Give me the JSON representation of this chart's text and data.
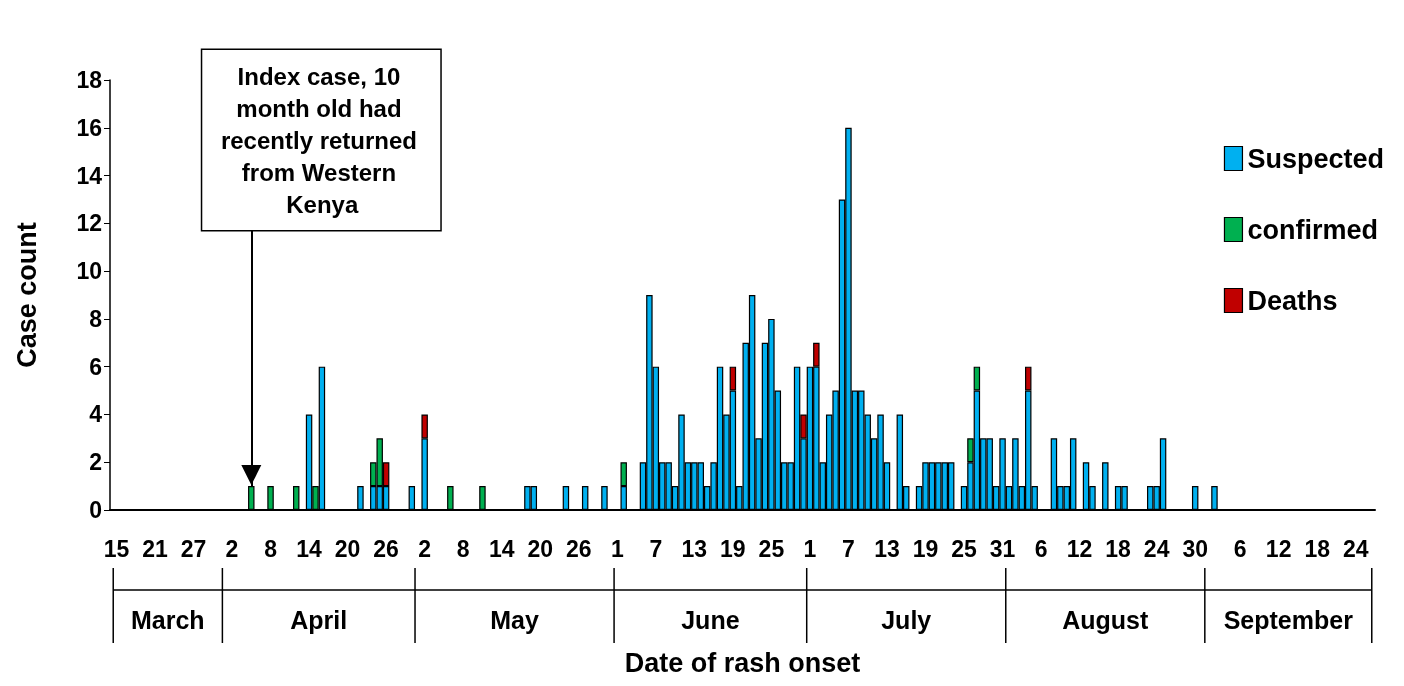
{
  "chart_data": {
    "type": "bar",
    "stacked": true,
    "xlabel": "Date of rash onset",
    "ylabel": "Case count",
    "x": [
      "--04-05",
      "--04-08",
      "--04-12",
      "--04-14",
      "--04-15",
      "--04-16",
      "--04-22",
      "--04-24",
      "--04-25",
      "--04-26",
      "--04-30",
      "--05-02",
      "--05-06",
      "--05-11",
      "--05-18",
      "--05-19",
      "--05-24",
      "--05-27",
      "--05-30",
      "--06-02",
      "--06-05",
      "--06-06",
      "--06-07",
      "--06-08",
      "--06-09",
      "--06-10",
      "--06-11",
      "--06-12",
      "--06-13",
      "--06-14",
      "--06-15",
      "--06-16",
      "--06-17",
      "--06-18",
      "--06-19",
      "--06-20",
      "--06-21",
      "--06-22",
      "--06-23",
      "--06-24",
      "--06-25",
      "--06-26",
      "--06-27",
      "--06-28",
      "--06-29",
      "--06-30",
      "--07-01",
      "--07-02",
      "--07-03",
      "--07-04",
      "--07-05",
      "--07-06",
      "--07-07",
      "--07-08",
      "--07-09",
      "--07-10",
      "--07-11",
      "--07-12",
      "--07-13",
      "--07-15",
      "--07-16",
      "--07-18",
      "--07-19",
      "--07-20",
      "--07-21",
      "--07-22",
      "--07-23",
      "--07-25",
      "--07-26",
      "--07-27",
      "--07-28",
      "--07-29",
      "--07-30",
      "--07-31",
      "--08-01",
      "--08-02",
      "--08-03",
      "--08-04",
      "--08-05",
      "--08-08",
      "--08-09",
      "--08-10",
      "--08-11",
      "--08-13",
      "--08-14",
      "--08-16",
      "--08-18",
      "--08-19",
      "--08-23",
      "--08-24",
      "--08-25",
      "--08-30",
      "--09-02"
    ],
    "series": [
      {
        "name": "Suspected",
        "color": "#00b0f0",
        "values": [
          0,
          0,
          0,
          4,
          0,
          6,
          1,
          1,
          1,
          1,
          1,
          3,
          0,
          0,
          1,
          1,
          1,
          1,
          1,
          1,
          2,
          9,
          6,
          2,
          2,
          1,
          4,
          2,
          2,
          2,
          1,
          2,
          6,
          4,
          5,
          1,
          7,
          9,
          3,
          7,
          8,
          5,
          2,
          2,
          6,
          3,
          6,
          6,
          2,
          4,
          5,
          13,
          16,
          5,
          5,
          4,
          3,
          4,
          2,
          4,
          1,
          1,
          2,
          2,
          2,
          2,
          2,
          1,
          2,
          5,
          3,
          3,
          1,
          3,
          1,
          3,
          1,
          5,
          1,
          3,
          1,
          1,
          3,
          2,
          1,
          2,
          1,
          1,
          1,
          1,
          3,
          1,
          1
        ]
      },
      {
        "name": "confirmed",
        "color": "#00b050",
        "values": [
          1,
          1,
          1,
          0,
          1,
          0,
          0,
          1,
          2,
          0,
          0,
          0,
          1,
          1,
          0,
          0,
          0,
          0,
          0,
          1,
          0,
          0,
          0,
          0,
          0,
          0,
          0,
          0,
          0,
          0,
          0,
          0,
          0,
          0,
          0,
          0,
          0,
          0,
          0,
          0,
          0,
          0,
          0,
          0,
          0,
          0,
          0,
          0,
          0,
          0,
          0,
          0,
          0,
          0,
          0,
          0,
          0,
          0,
          0,
          0,
          0,
          0,
          0,
          0,
          0,
          0,
          0,
          0,
          1,
          1,
          0,
          0,
          0,
          0,
          0,
          0,
          0,
          0,
          0,
          0,
          0,
          0,
          0,
          0,
          0,
          0,
          0,
          0,
          0,
          0,
          0,
          0,
          0
        ]
      },
      {
        "name": "Deaths",
        "color": "#c00000",
        "values": [
          0,
          0,
          0,
          0,
          0,
          0,
          0,
          0,
          0,
          1,
          0,
          1,
          0,
          0,
          0,
          0,
          0,
          0,
          0,
          0,
          0,
          0,
          0,
          0,
          0,
          0,
          0,
          0,
          0,
          0,
          0,
          0,
          0,
          0,
          1,
          0,
          0,
          0,
          0,
          0,
          0,
          0,
          0,
          0,
          0,
          1,
          0,
          1,
          0,
          0,
          0,
          0,
          0,
          0,
          0,
          0,
          0,
          0,
          0,
          0,
          0,
          0,
          0,
          0,
          0,
          0,
          0,
          0,
          0,
          0,
          0,
          0,
          0,
          0,
          0,
          0,
          0,
          1,
          0,
          0,
          0,
          0,
          0,
          0,
          0,
          0,
          0,
          0,
          0,
          0,
          0,
          0,
          0
        ]
      }
    ],
    "xlim": [
      "--03-15",
      "--09-26"
    ],
    "xticks": [
      {
        "value": "--03-15",
        "label": "15"
      },
      {
        "value": "--03-21",
        "label": "21"
      },
      {
        "value": "--03-27",
        "label": "27"
      },
      {
        "value": "--04-02",
        "label": "2"
      },
      {
        "value": "--04-08",
        "label": "8"
      },
      {
        "value": "--04-14",
        "label": "14"
      },
      {
        "value": "--04-20",
        "label": "20"
      },
      {
        "value": "--04-26",
        "label": "26"
      },
      {
        "value": "--05-02",
        "label": "2"
      },
      {
        "value": "--05-08",
        "label": "8"
      },
      {
        "value": "--05-14",
        "label": "14"
      },
      {
        "value": "--05-20",
        "label": "20"
      },
      {
        "value": "--05-26",
        "label": "26"
      },
      {
        "value": "--06-01",
        "label": "1"
      },
      {
        "value": "--06-07",
        "label": "7"
      },
      {
        "value": "--06-13",
        "label": "13"
      },
      {
        "value": "--06-19",
        "label": "19"
      },
      {
        "value": "--06-25",
        "label": "25"
      },
      {
        "value": "--07-01",
        "label": "1"
      },
      {
        "value": "--07-07",
        "label": "7"
      },
      {
        "value": "--07-13",
        "label": "13"
      },
      {
        "value": "--07-19",
        "label": "19"
      },
      {
        "value": "--07-25",
        "label": "25"
      },
      {
        "value": "--07-31",
        "label": "31"
      },
      {
        "value": "--08-06",
        "label": "6"
      },
      {
        "value": "--08-12",
        "label": "12"
      },
      {
        "value": "--08-18",
        "label": "18"
      },
      {
        "value": "--08-24",
        "label": "24"
      },
      {
        "value": "--08-30",
        "label": "30"
      },
      {
        "value": "--09-06",
        "label": "6"
      },
      {
        "value": "--09-12",
        "label": "12"
      },
      {
        "value": "--09-18",
        "label": "18"
      },
      {
        "value": "--09-24",
        "label": "24"
      }
    ],
    "ylim": [
      0,
      18
    ],
    "yticks": [
      0,
      2,
      4,
      6,
      8,
      10,
      12,
      14,
      16,
      18
    ],
    "legend": "top right",
    "annotations": [
      "March",
      "April",
      "May",
      "June",
      "July",
      "August",
      "September",
      {
        "text": "Index case, 10 month old had recently returned from Western Kenya",
        "x": "--04-05",
        "y": 1
      }
    ]
  }
}
